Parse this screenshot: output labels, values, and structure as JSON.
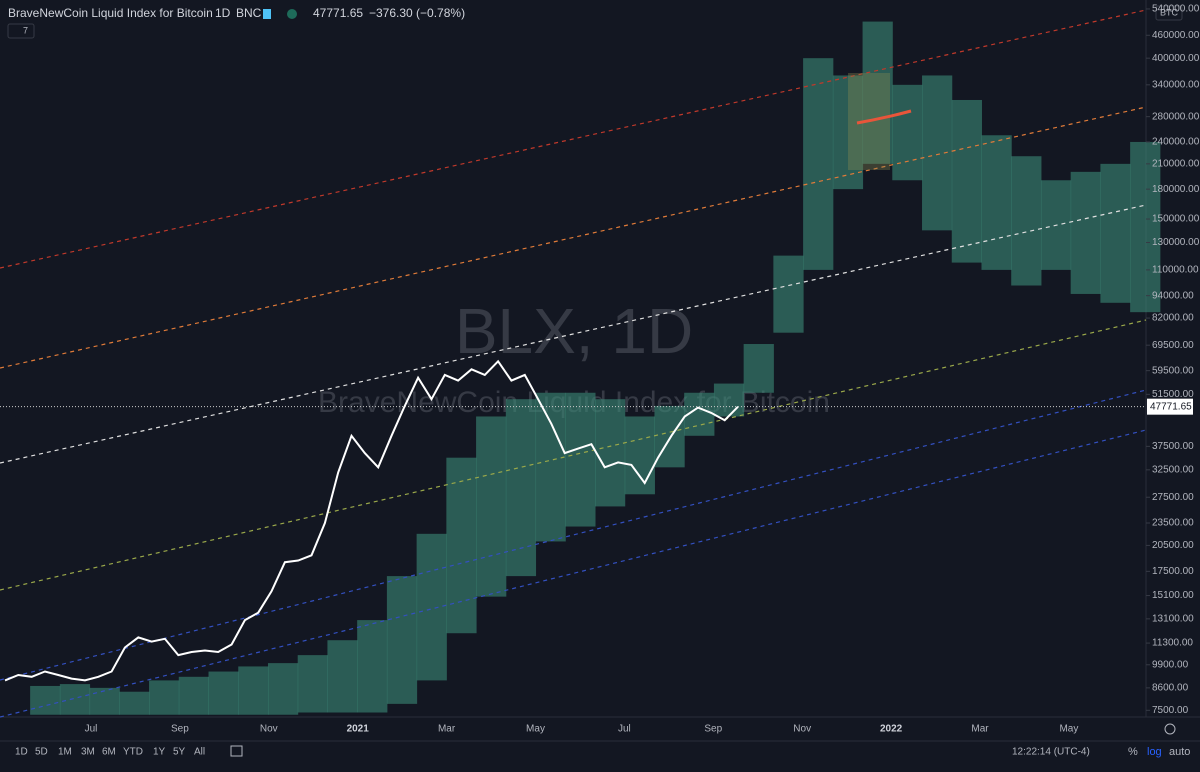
{
  "header": {
    "symbol": "BraveNewCoin Liquid Index for Bitcoin",
    "interval": "1D",
    "exchange": "BNC",
    "change": "−376.30 (−0.78%)",
    "indicators": "7",
    "currency": "BTC"
  },
  "watermark": {
    "title": "BLX, 1D",
    "subtitle": "BraveNewCoin Liquid Index for Bitcoin"
  },
  "toolbar": {
    "ranges": [
      "1D",
      "5D",
      "1M",
      "3M",
      "6M",
      "YTD",
      "1Y",
      "5Y",
      "All"
    ],
    "clock": "12:22:14 (UTC-4)",
    "percent": "%",
    "log": "log",
    "auto": "auto"
  },
  "chart_data": {
    "type": "line",
    "log_scale": true,
    "grid": false,
    "xticks": [
      "Jul",
      "Sep",
      "Nov",
      "2021",
      "Mar",
      "May",
      "Jul",
      "Sep",
      "Nov",
      "2022",
      "Mar",
      "May"
    ],
    "ylim": [
      7200,
      560000
    ],
    "yticks": [
      {
        "value": 540000,
        "label": "540000.00"
      },
      {
        "value": 460000,
        "label": "460000.00"
      },
      {
        "value": 400000,
        "label": "400000.00"
      },
      {
        "value": 340000,
        "label": "340000.00"
      },
      {
        "value": 280000,
        "label": "280000.00"
      },
      {
        "value": 240000,
        "label": "240000.00"
      },
      {
        "value": 210000,
        "label": "210000.00"
      },
      {
        "value": 180000,
        "label": "180000.00"
      },
      {
        "value": 150000,
        "label": "150000.00"
      },
      {
        "value": 130000,
        "label": "130000.00"
      },
      {
        "value": 110000,
        "label": "110000.00"
      },
      {
        "value": 94000,
        "label": "94000.00"
      },
      {
        "value": 82000,
        "label": "82000.00"
      },
      {
        "value": 69500,
        "label": "69500.00"
      },
      {
        "value": 59500,
        "label": "59500.00"
      },
      {
        "value": 51500,
        "label": "51500.00"
      },
      {
        "value": 37500,
        "label": "37500.00"
      },
      {
        "value": 32500,
        "label": "32500.00"
      },
      {
        "value": 27500,
        "label": "27500.00"
      },
      {
        "value": 23500,
        "label": "23500.00"
      },
      {
        "value": 20500,
        "label": "20500.00"
      },
      {
        "value": 17500,
        "label": "17500.00"
      },
      {
        "value": 15100,
        "label": "15100.00"
      },
      {
        "value": 13100,
        "label": "13100.00"
      },
      {
        "value": 11300,
        "label": "11300.00"
      },
      {
        "value": 9900,
        "label": "9900.00"
      },
      {
        "value": 8600,
        "label": "8600.00"
      },
      {
        "value": 7500,
        "label": "7500.00"
      }
    ],
    "series": [
      {
        "color": "#ffffff",
        "values": [
          9000,
          9300,
          9200,
          9500,
          9300,
          9100,
          9000,
          9200,
          9500,
          11000,
          11700,
          11400,
          11600,
          10500,
          10700,
          10800,
          10700,
          11200,
          13000,
          13600,
          15500,
          18500,
          18700,
          19300,
          23500,
          32000,
          40000,
          36000,
          33000,
          40000,
          48000,
          57000,
          50000,
          58000,
          56000,
          60000,
          58000,
          63000,
          56000,
          58000,
          50000,
          43000,
          36000,
          37000,
          38000,
          33000,
          34000,
          33500,
          30000,
          35000,
          40000,
          45000,
          47500,
          46000,
          44000,
          47771.65
        ]
      }
    ],
    "band": {
      "color": "#3c8a78",
      "upper": [
        8700,
        8800,
        8600,
        8400,
        9000,
        9200,
        9500,
        9800,
        10000,
        10500,
        11500,
        13000,
        17000,
        22000,
        35000,
        45000,
        50000,
        52000,
        52000,
        50000,
        45000,
        48000,
        52000,
        55000,
        70000,
        120000,
        400000,
        360000,
        500000,
        340000,
        360000,
        310000,
        250000,
        220000,
        190000,
        200000,
        210000,
        240000
      ],
      "lower": [
        7300,
        7300,
        7300,
        7300,
        7300,
        7300,
        7300,
        7300,
        7300,
        7400,
        7400,
        7400,
        7800,
        9000,
        12000,
        15000,
        17000,
        21000,
        23000,
        26000,
        28000,
        33000,
        40000,
        45000,
        52000,
        75000,
        110000,
        180000,
        210000,
        190000,
        140000,
        115000,
        110000,
        100000,
        110000,
        95000,
        90000,
        85000
      ]
    }
  }
}
